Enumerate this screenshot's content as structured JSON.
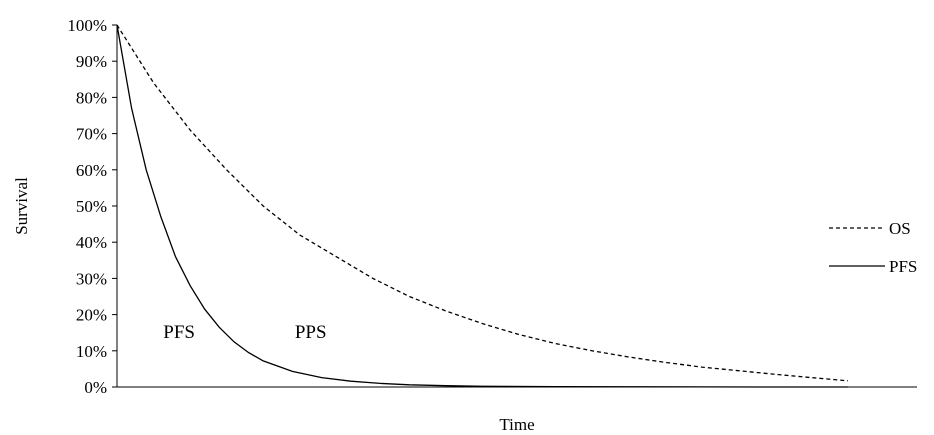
{
  "chart_data": {
    "type": "line",
    "title": "",
    "xlabel": "Time",
    "ylabel": "Survival",
    "ylim": [
      0,
      100
    ],
    "y_ticks": [
      "0%",
      "10%",
      "20%",
      "30%",
      "40%",
      "50%",
      "60%",
      "70%",
      "80%",
      "90%",
      "100%"
    ],
    "x_ticks": [],
    "grid": false,
    "legend_position": "right",
    "series": [
      {
        "name": "OS",
        "style": "dashed",
        "color": "#000000",
        "x": [
          0,
          5,
          10,
          15,
          20,
          25,
          30,
          35,
          40,
          45,
          50,
          55,
          60,
          65,
          70,
          75,
          80,
          85,
          90,
          95,
          100
        ],
        "y": [
          100,
          84,
          71,
          60,
          50,
          42,
          36,
          30,
          25,
          21,
          17.5,
          14.5,
          12,
          10,
          8.3,
          6.8,
          5.5,
          4.5,
          3.5,
          2.6,
          1.7
        ]
      },
      {
        "name": "PFS",
        "style": "solid",
        "color": "#000000",
        "x": [
          0,
          2,
          4,
          6,
          8,
          10,
          12,
          14,
          16,
          18,
          20,
          24,
          28,
          32,
          36,
          40,
          45,
          50,
          60,
          70,
          80,
          90,
          100
        ],
        "y": [
          100,
          77,
          60,
          47,
          36,
          28,
          21.5,
          16.5,
          12.5,
          9.5,
          7.2,
          4.3,
          2.6,
          1.6,
          1.0,
          0.6,
          0.35,
          0.2,
          0.1,
          0.05,
          0.02,
          0.01,
          0
        ]
      }
    ],
    "annotations": [
      {
        "text": "PFS",
        "x": 8.5,
        "y": 15.5
      },
      {
        "text": "PPS",
        "x": 26.5,
        "y": 15.5
      }
    ]
  }
}
